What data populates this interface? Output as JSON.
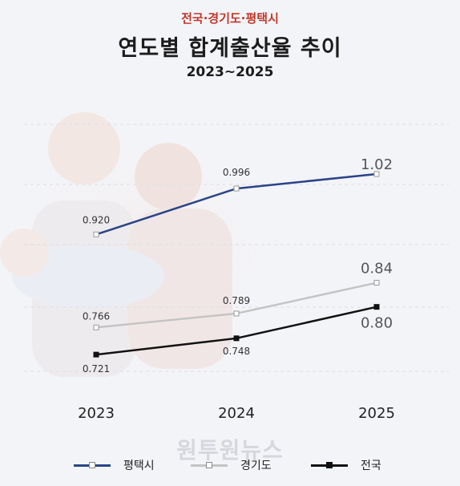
{
  "header": {
    "supertitle": "전국·경기도·평택시",
    "title": "연도별 합계출산율 추이",
    "subtitle": "2023~2025"
  },
  "watermark": "원투원뉴스",
  "chart_data": {
    "type": "line",
    "title": "연도별 합계출산율 추이",
    "categories": [
      "2023",
      "2024",
      "2025"
    ],
    "series": [
      {
        "name": "평택시",
        "values": [
          0.92,
          0.996,
          1.02
        ],
        "labels": [
          "0.920",
          "0.996",
          "1.02"
        ],
        "color": "#2a4487"
      },
      {
        "name": "경기도",
        "values": [
          0.766,
          0.789,
          0.84
        ],
        "labels": [
          "0.766",
          "0.789",
          "0.84"
        ],
        "color": "#c4c4c4"
      },
      {
        "name": "전국",
        "values": [
          0.721,
          0.748,
          0.8
        ],
        "labels": [
          "0.721",
          "0.748",
          "0.80"
        ],
        "color": "#111111"
      }
    ],
    "grid": true,
    "legend_position": "bottom"
  }
}
